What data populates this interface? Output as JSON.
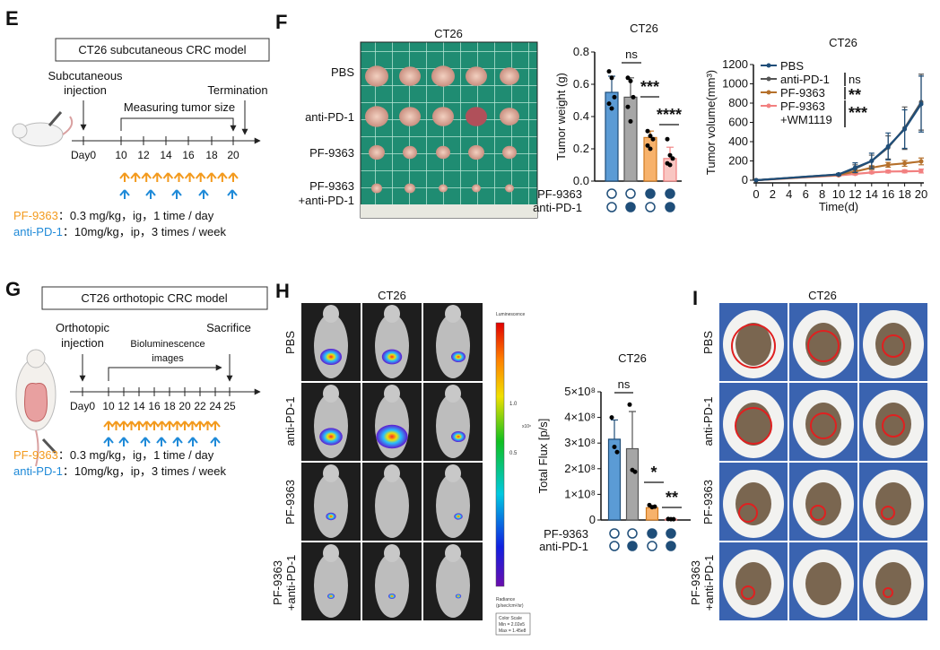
{
  "panels": {
    "E": {
      "letter": "E",
      "box_title": "CT26 subcutaneous CRC model",
      "injection": [
        "Subcutaneous",
        "injection"
      ],
      "measure": "Measuring tumor size",
      "termination": "Termination",
      "ticks": [
        "Day0",
        "10",
        "12",
        "14",
        "16",
        "18",
        "20"
      ],
      "drug1_name": "PF-9363",
      "drug1_dose": "：0.3 mg/kg，ig，1 time / day",
      "drug2_name": "anti-PD-1",
      "drug2_dose": "：10mg/kg，ip，3 times / week"
    },
    "F": {
      "letter": "F",
      "photo_title": "CT26",
      "photo_rows": [
        "PBS",
        "anti-PD-1",
        "PF-9363",
        "PF-9363",
        "+anti-PD-1"
      ]
    },
    "G": {
      "letter": "G",
      "box_title": "CT26 orthotopic CRC model",
      "injection": [
        "Orthotopic",
        "injection"
      ],
      "imaging": [
        "Bioluminescence",
        "images"
      ],
      "sacrifice": "Sacrifice",
      "ticks": [
        "Day0",
        "10",
        "12",
        "14",
        "16",
        "18",
        "20",
        "22",
        "24",
        "25"
      ],
      "drug1_name": "PF-9363",
      "drug1_dose": "：0.3 mg/kg，ig，1 time / day",
      "drug2_name": "anti-PD-1",
      "drug2_dose": "：10mg/kg，ip，3 times / week"
    },
    "H": {
      "letter": "H",
      "title": "CT26",
      "rows": [
        "PBS",
        "anti-PD-1",
        "PF-9363",
        "PF-9363",
        "+anti-PD-1"
      ],
      "colorbar_title": "Luminescence",
      "colorbar_ticks": [
        "1.0",
        "0.5"
      ],
      "colorbar_unit": "x10⁸",
      "radiance": [
        "Radiance",
        "(p/sec/cm²/sr)"
      ],
      "scale_box": [
        "Color Scale",
        "Min = 2.02e5",
        "Max = 1.45e8"
      ]
    },
    "I": {
      "letter": "I",
      "title": "CT26",
      "rows": [
        "PBS",
        "anti-PD-1",
        "PF-9363",
        "PF-9363",
        "+anti-PD-1"
      ]
    }
  },
  "colors": {
    "pbs": "#5b9bd5",
    "anti": "#a6a6a6",
    "pf": "#f7b26b",
    "combo": "#f9c6c2",
    "dark": "#1f4e79",
    "orange": "#f39a1d",
    "blue": "#1f8ad8"
  },
  "chart_data": [
    {
      "type": "bar",
      "title": "CT26",
      "ylabel": "Tumor weight (g)",
      "ylim": [
        0,
        0.8
      ],
      "yticks": [
        "0.0",
        "0.2",
        "0.4",
        "0.6",
        "0.8"
      ],
      "row_labels": [
        "PF-9363",
        "anti-PD-1"
      ],
      "groups": [
        {
          "pf": false,
          "anti": false,
          "mean": 0.55,
          "sd": 0.1,
          "points": [
            0.68,
            0.64,
            0.52,
            0.48,
            0.45
          ]
        },
        {
          "pf": false,
          "anti": true,
          "mean": 0.52,
          "sd": 0.12,
          "points": [
            0.64,
            0.62,
            0.52,
            0.46,
            0.37
          ]
        },
        {
          "pf": true,
          "anti": false,
          "mean": 0.27,
          "sd": 0.04,
          "points": [
            0.31,
            0.28,
            0.26,
            0.22,
            0.2
          ]
        },
        {
          "pf": true,
          "anti": true,
          "mean": 0.14,
          "sd": 0.07,
          "points": [
            0.26,
            0.16,
            0.14,
            0.11,
            0.1
          ]
        }
      ],
      "significance": [
        "ns",
        "***",
        "****"
      ]
    },
    {
      "type": "line",
      "title": "CT26",
      "xlabel": "Time(d)",
      "ylabel": "Tumor volume(mm³)",
      "ylim": [
        0,
        1200
      ],
      "xlim": [
        0,
        20
      ],
      "yticks": [
        "0",
        "200",
        "400",
        "600",
        "800",
        "1000",
        "1200"
      ],
      "xticks": [
        "0",
        "2",
        "4",
        "6",
        "8",
        "10",
        "12",
        "14",
        "16",
        "18",
        "20"
      ],
      "x": [
        0,
        10,
        12,
        14,
        16,
        18,
        20
      ],
      "series": [
        {
          "name": "PBS",
          "values": [
            0,
            60,
            130,
            200,
            350,
            530,
            790
          ],
          "err": [
            0,
            10,
            50,
            80,
            140,
            200,
            290
          ]
        },
        {
          "name": "anti-PD-1",
          "values": [
            0,
            60,
            120,
            200,
            340,
            540,
            810
          ],
          "err": [
            0,
            10,
            40,
            60,
            120,
            220,
            290
          ]
        },
        {
          "name": "PF-9363",
          "values": [
            0,
            55,
            90,
            130,
            160,
            175,
            195
          ],
          "err": [
            0,
            8,
            15,
            20,
            25,
            30,
            35
          ]
        },
        {
          "name": "PF-9363",
          "name2": "+WM1119",
          "values": [
            0,
            50,
            65,
            80,
            90,
            92,
            95
          ],
          "err": [
            0,
            8,
            10,
            12,
            15,
            15,
            20
          ]
        }
      ],
      "significance": [
        "ns",
        "**",
        "***"
      ]
    },
    {
      "type": "bar",
      "title": "CT26",
      "ylabel": "Total Flux [p/s]",
      "ylim": [
        0,
        5
      ],
      "yticks": [
        "0",
        "1×10⁸",
        "2×10⁸",
        "3×10⁸",
        "4×10⁸",
        "5×10⁸"
      ],
      "row_labels": [
        "PF-9363",
        "anti-PD-1"
      ],
      "groups": [
        {
          "pf": false,
          "anti": false,
          "mean": 3.15,
          "sd": 0.75,
          "points": [
            4.0,
            2.85,
            2.65
          ]
        },
        {
          "pf": false,
          "anti": true,
          "mean": 2.78,
          "sd": 1.45,
          "points": [
            4.5,
            1.95,
            1.88
          ]
        },
        {
          "pf": true,
          "anti": false,
          "mean": 0.48,
          "sd": 0.08,
          "points": [
            0.58,
            0.5,
            0.52
          ]
        },
        {
          "pf": true,
          "anti": true,
          "mean": 0.03,
          "sd": 0.01,
          "points": [
            0.04,
            0.03,
            0.03
          ]
        }
      ],
      "significance": [
        "ns",
        "*",
        "**"
      ]
    }
  ]
}
